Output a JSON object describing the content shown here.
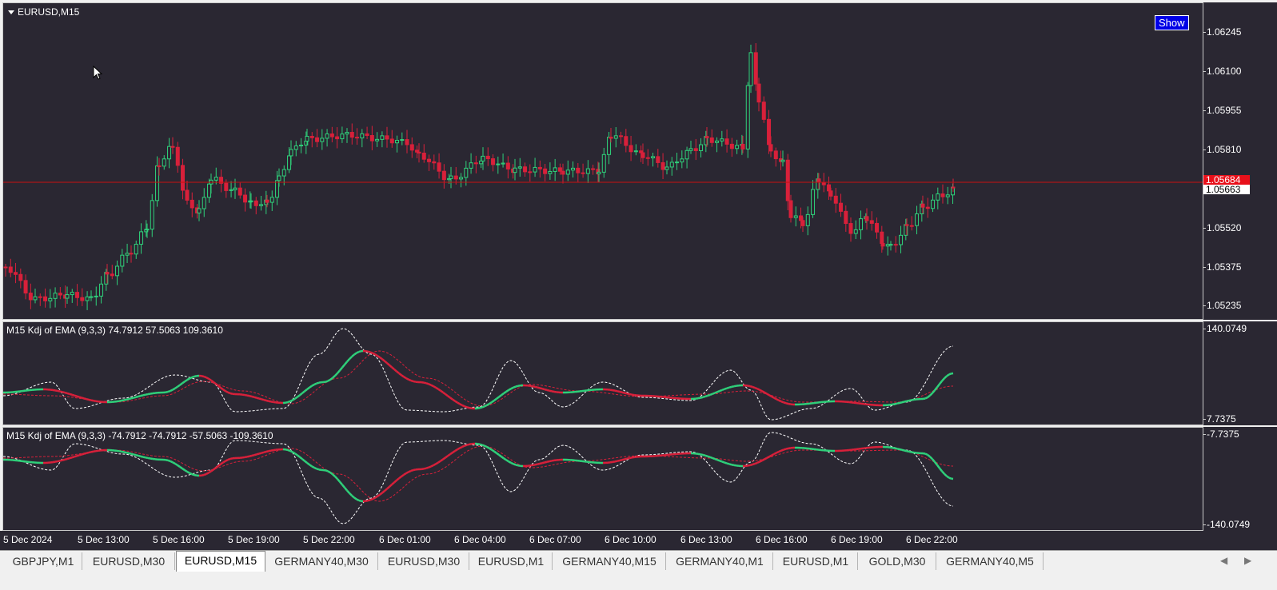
{
  "chart": {
    "symbol_label": "EURUSD,M15",
    "show_button": "Show",
    "price_ticks": [
      "1.06245",
      "1.06100",
      "1.05955",
      "1.05810",
      "1.05520",
      "1.05375",
      "1.05235"
    ],
    "ask_price": "1.05684",
    "bid_price": "1.05663",
    "colors": {
      "bull": "#2fd07a",
      "bear": "#d8203a",
      "background": "#2a2732",
      "price_line": "#c81010"
    }
  },
  "indicator1": {
    "label": "M15 Kdj of EMA (9,3,3) 74.7912 57.5063 109.3610",
    "scale_max": "140.0749",
    "scale_min": "7.7375"
  },
  "indicator2": {
    "label": "M15 Kdj of EMA (9,3,3) -74.7912 -74.7912 -57.5063 -109.3610",
    "scale_max": "-7.7375",
    "scale_min": "-140.0749"
  },
  "time_axis": [
    "5 Dec 2024",
    "5 Dec 13:00",
    "5 Dec 16:00",
    "5 Dec 19:00",
    "5 Dec 22:00",
    "6 Dec 01:00",
    "6 Dec 04:00",
    "6 Dec 07:00",
    "6 Dec 10:00",
    "6 Dec 13:00",
    "6 Dec 16:00",
    "6 Dec 19:00",
    "6 Dec 22:00"
  ],
  "tabs": [
    "GBPJPY,M1",
    "EURUSD,M30",
    "EURUSD,M15",
    "GERMANY40,M30",
    "EURUSD,M30",
    "EURUSD,M1",
    "GERMANY40,M15",
    "GERMANY40,M1",
    "EURUSD,M1",
    "GOLD,M30",
    "GERMANY40,M5"
  ],
  "active_tab": "EURUSD,M15",
  "scroll_icons": [
    "arrow-left-icon",
    "arrow-right-icon"
  ]
}
